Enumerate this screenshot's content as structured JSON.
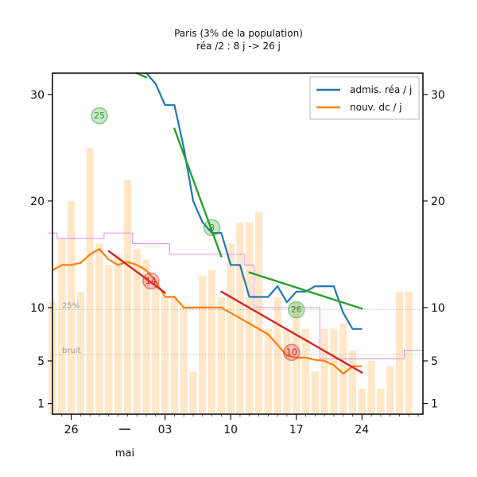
{
  "chart_data": {
    "type": "line",
    "title": "Paris (3% de la population)",
    "subtitle": "réa /2 : 8 j -> 26 j",
    "xlabel": "mai",
    "ylabel": "",
    "x": [
      -10,
      -9,
      -8,
      -7,
      -6,
      -5,
      -4,
      -3,
      -2,
      -1,
      0,
      1,
      2,
      3,
      4,
      5,
      6,
      7,
      8,
      9,
      10,
      11,
      12,
      13,
      14,
      15,
      16,
      17,
      18,
      19,
      20,
      21,
      22,
      23,
      24,
      25,
      26,
      27,
      28
    ],
    "x_ticks": [
      {
        "x": -9,
        "label": "26"
      },
      {
        "x": 1,
        "label": "03"
      },
      {
        "x": 8,
        "label": "10"
      },
      {
        "x": 15,
        "label": "17"
      },
      {
        "x": 22,
        "label": "24"
      }
    ],
    "y_ticks": [
      1,
      5,
      10,
      20,
      30
    ],
    "ylim": [
      0,
      32
    ],
    "xlim": [
      -11,
      28.5
    ],
    "reference_lines": [
      {
        "label": "25%",
        "y": 9.8
      },
      {
        "label": "bruit",
        "y": 5.6
      }
    ],
    "series": [
      {
        "name": "admis. réa / j",
        "color": "#1f77b4",
        "x": [
          -1,
          0,
          1,
          2,
          3,
          4,
          5,
          6,
          7,
          8,
          9,
          10,
          11,
          12,
          13,
          14,
          15,
          16,
          17,
          18,
          19,
          20,
          21,
          22
        ],
        "y": [
          32,
          31,
          29,
          29,
          25,
          20,
          18,
          17,
          17,
          14,
          14,
          11,
          11,
          11,
          12,
          10.5,
          11.5,
          11.5,
          12,
          12,
          12,
          9.5,
          8,
          8
        ]
      },
      {
        "name": "nouv. dc / j",
        "color": "#ff7f0e",
        "x": [
          -11,
          -10,
          -9,
          -8,
          -7,
          -6,
          -5,
          -4,
          -3,
          -2,
          -1,
          0,
          1,
          2,
          3,
          4,
          5,
          6,
          7,
          8,
          9,
          10,
          11,
          12,
          13,
          14,
          15,
          16,
          17,
          18,
          19,
          20,
          21,
          22
        ],
        "y": [
          13.5,
          14,
          14,
          14.2,
          15,
          15.5,
          14.5,
          14,
          14.3,
          14,
          13.5,
          12.5,
          11,
          11,
          10,
          10,
          10,
          10,
          10,
          9.5,
          9,
          8.5,
          8,
          7.5,
          6.5,
          5.5,
          5.3,
          5.3,
          5.1,
          5,
          4.6,
          3.8,
          4.5,
          4.5
        ]
      }
    ],
    "trend_lines": [
      {
        "color": "#2ca02c",
        "x": [
          -2,
          -1
        ],
        "y": [
          32,
          31.6
        ]
      },
      {
        "color": "#2ca02c",
        "x": [
          2,
          7
        ],
        "y": [
          26.8,
          14.8
        ]
      },
      {
        "color": "#2ca02c",
        "x": [
          10,
          22
        ],
        "y": [
          13.3,
          9.9
        ]
      },
      {
        "color": "#d62728",
        "x": [
          -5,
          1
        ],
        "y": [
          15.3,
          11.4
        ]
      },
      {
        "color": "#d62728",
        "x": [
          7,
          22
        ],
        "y": [
          11.5,
          3.9
        ]
      }
    ],
    "bars": {
      "color": "#ffe7c8",
      "x": [
        -11,
        -10,
        -9,
        -8,
        -7,
        -6,
        -5,
        -4,
        -3,
        -2,
        -1,
        0,
        1,
        2,
        3,
        4,
        5,
        6,
        7,
        8,
        9,
        10,
        11,
        12,
        13,
        14,
        15,
        16,
        17,
        18,
        19,
        20,
        21,
        22,
        23,
        24,
        25,
        26,
        27
      ],
      "values": [
        10.5,
        16.5,
        20,
        11.5,
        25,
        16,
        14,
        15,
        22,
        15.5,
        14.5,
        12,
        11,
        11,
        10,
        4,
        13,
        13.5,
        11,
        16,
        18,
        18,
        19,
        8,
        11,
        8,
        10.5,
        8,
        4,
        8,
        8,
        8.5,
        6,
        2.4,
        5,
        2.4,
        4.5,
        11.5,
        11.5
      ]
    },
    "step_line": {
      "color": "#dd77ee",
      "x": [
        -11,
        -10,
        -9,
        -8,
        -7,
        -6,
        -5,
        -4,
        -3,
        -2,
        -1,
        0,
        1,
        2,
        3,
        4,
        5,
        6,
        7,
        8,
        9,
        10,
        11,
        12,
        13,
        14,
        15,
        16,
        17,
        18,
        19,
        20,
        21,
        22,
        23,
        24,
        25,
        26,
        27,
        28
      ],
      "y": [
        17,
        16.5,
        16.5,
        16.5,
        16.5,
        16.5,
        17,
        17,
        17,
        16,
        16,
        16,
        16,
        15,
        15,
        15,
        15,
        15,
        15,
        15,
        15,
        14,
        10,
        10,
        10,
        10,
        10,
        10,
        10,
        5.2,
        5.2,
        5.2,
        5.2,
        5.2,
        5.2,
        5.2,
        5.2,
        5.2,
        6,
        6
      ]
    },
    "annotations": [
      {
        "label": "25",
        "x": -6,
        "y": 28,
        "color": "#2ca02c"
      },
      {
        "label": "8",
        "x": 6,
        "y": 17.5,
        "color": "#2ca02c"
      },
      {
        "label": "14",
        "x": -0.5,
        "y": 12.5,
        "color": "#d62728"
      },
      {
        "label": "26",
        "x": 15,
        "y": 9.8,
        "color": "#2ca02c"
      },
      {
        "label": "10",
        "x": 14.5,
        "y": 5.8,
        "color": "#d62728"
      }
    ],
    "legend_position": "top-right"
  }
}
